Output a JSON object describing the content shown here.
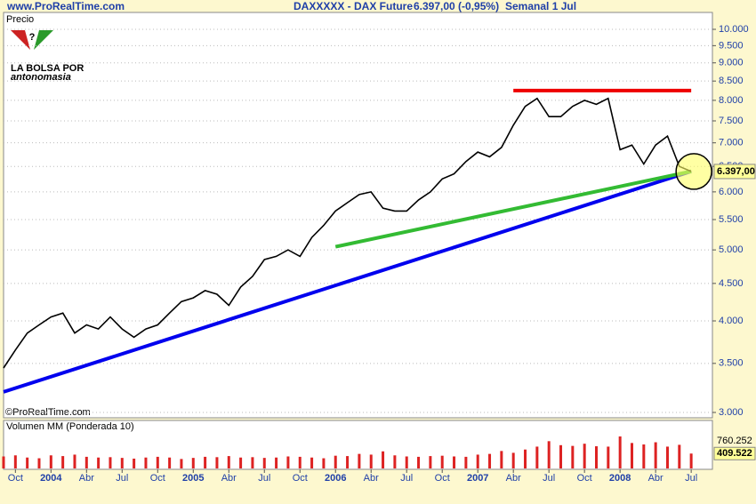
{
  "header": {
    "site": "www.ProRealTime.com",
    "instrument": "DAXXXXX - DAX Future",
    "quote": "6.397,00 (-0,95%)",
    "period": "Semanal  1 Jul"
  },
  "logo": {
    "line1": "LA BOLSA POR",
    "line2": "antonomasia"
  },
  "copyright": "©ProRealTime.com",
  "chart_data": [
    {
      "type": "line",
      "title": "Precio",
      "log_scale": true,
      "color": "#000000",
      "categories": [
        null,
        "Oct",
        null,
        null,
        "2004",
        null,
        null,
        "Abr",
        null,
        null,
        "Jul",
        null,
        null,
        "Oct",
        null,
        null,
        "2005",
        null,
        null,
        "Abr",
        null,
        null,
        "Jul",
        null,
        null,
        "Oct",
        null,
        null,
        "2006",
        null,
        null,
        "Abr",
        null,
        null,
        "Jul",
        null,
        null,
        "Oct",
        null,
        null,
        "2007",
        null,
        null,
        "Abr",
        null,
        null,
        "Jul",
        null,
        null,
        "Oct",
        null,
        null,
        "2008",
        null,
        null,
        "Abr",
        null,
        null,
        "Jul"
      ],
      "values": [
        3450,
        3650,
        3850,
        3950,
        4050,
        4100,
        3850,
        3950,
        3900,
        4050,
        3900,
        3800,
        3900,
        3950,
        4100,
        4250,
        4300,
        4400,
        4350,
        4200,
        4450,
        4600,
        4850,
        4900,
        5000,
        4900,
        5200,
        5400,
        5650,
        5800,
        5950,
        6000,
        5700,
        5650,
        5650,
        5850,
        6000,
        6250,
        6350,
        6600,
        6800,
        6700,
        6900,
        7400,
        7850,
        8050,
        7600,
        7600,
        7850,
        8000,
        7900,
        8050,
        6850,
        6950,
        6550,
        6950,
        7150,
        6500,
        6397
      ],
      "ylim": [
        3000,
        10000
      ],
      "yticks": [
        {
          "value": 3000,
          "label": "3.000"
        },
        {
          "value": 3500,
          "label": "3.500"
        },
        {
          "value": 4000,
          "label": "4.000"
        },
        {
          "value": 4500,
          "label": "4.500"
        },
        {
          "value": 5000,
          "label": "5.000"
        },
        {
          "value": 5500,
          "label": "5.500"
        },
        {
          "value": 6000,
          "label": "6.000"
        },
        {
          "value": 6500,
          "label": "6.500"
        },
        {
          "value": 7000,
          "label": "7.000"
        },
        {
          "value": 7500,
          "label": "7.500"
        },
        {
          "value": 8000,
          "label": "8.000"
        },
        {
          "value": 8500,
          "label": "8.500"
        },
        {
          "value": 9000,
          "label": "9.000"
        },
        {
          "value": 9500,
          "label": "9.500"
        },
        {
          "value": 10000,
          "label": "10.000"
        }
      ],
      "last": {
        "value": 6397,
        "label": "6.397,00"
      },
      "grid": true,
      "trendlines": [
        {
          "color": "#0000ee",
          "from": [
            0,
            3200
          ],
          "to": [
            58,
            6400
          ]
        },
        {
          "color": "#33bb33",
          "from": [
            28,
            5050
          ],
          "to": [
            58,
            6400
          ]
        },
        {
          "color": "#ee0000",
          "from": [
            43,
            8250
          ],
          "to": [
            58,
            8250
          ]
        }
      ]
    },
    {
      "type": "bar",
      "title": "Volumen MM (Ponderada 10)",
      "color": "#dd2222",
      "values": [
        330000,
        360000,
        300000,
        280000,
        360000,
        340000,
        380000,
        320000,
        300000,
        310000,
        290000,
        270000,
        300000,
        320000,
        300000,
        260000,
        290000,
        320000,
        310000,
        340000,
        300000,
        310000,
        290000,
        300000,
        330000,
        320000,
        300000,
        280000,
        350000,
        340000,
        400000,
        380000,
        470000,
        360000,
        330000,
        320000,
        340000,
        350000,
        330000,
        320000,
        380000,
        400000,
        480000,
        430000,
        520000,
        600000,
        750000,
        640000,
        620000,
        680000,
        610000,
        600000,
        880000,
        700000,
        660000,
        720000,
        600000,
        650000,
        409522
      ],
      "ylim": [
        0,
        1100000
      ],
      "ma": {
        "value": 760252,
        "label": "760.252"
      },
      "last": {
        "value": 409522,
        "label": "409.522"
      }
    }
  ]
}
